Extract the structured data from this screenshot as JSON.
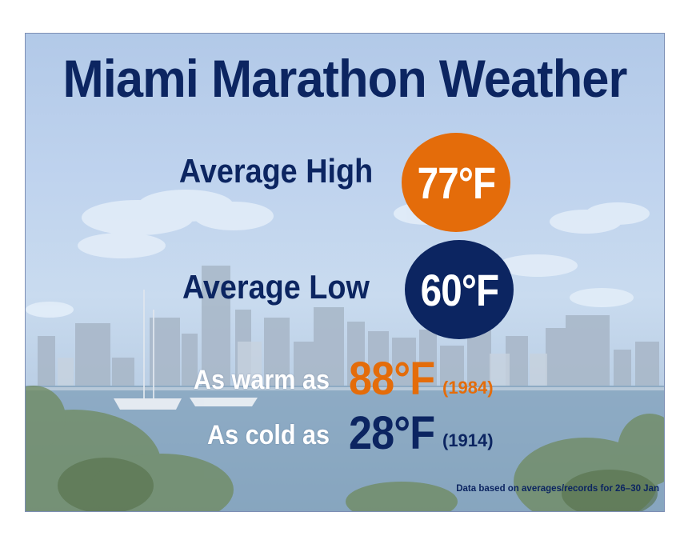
{
  "title": "Miami Marathon Weather",
  "average_high": {
    "label": "Average High",
    "value": "77°F",
    "color": "#e46c0a"
  },
  "average_low": {
    "label": "Average Low",
    "value": "60°F",
    "color": "#0c2561"
  },
  "record_warm": {
    "label": "As warm as",
    "value": "88°F",
    "year": "(1984)",
    "color": "#e46c0a"
  },
  "record_cold": {
    "label": "As cold as",
    "value": "28°F",
    "year": "(1914)",
    "color": "#0c2561"
  },
  "footnote": "Data based on averages/records for  26–30 Jan"
}
